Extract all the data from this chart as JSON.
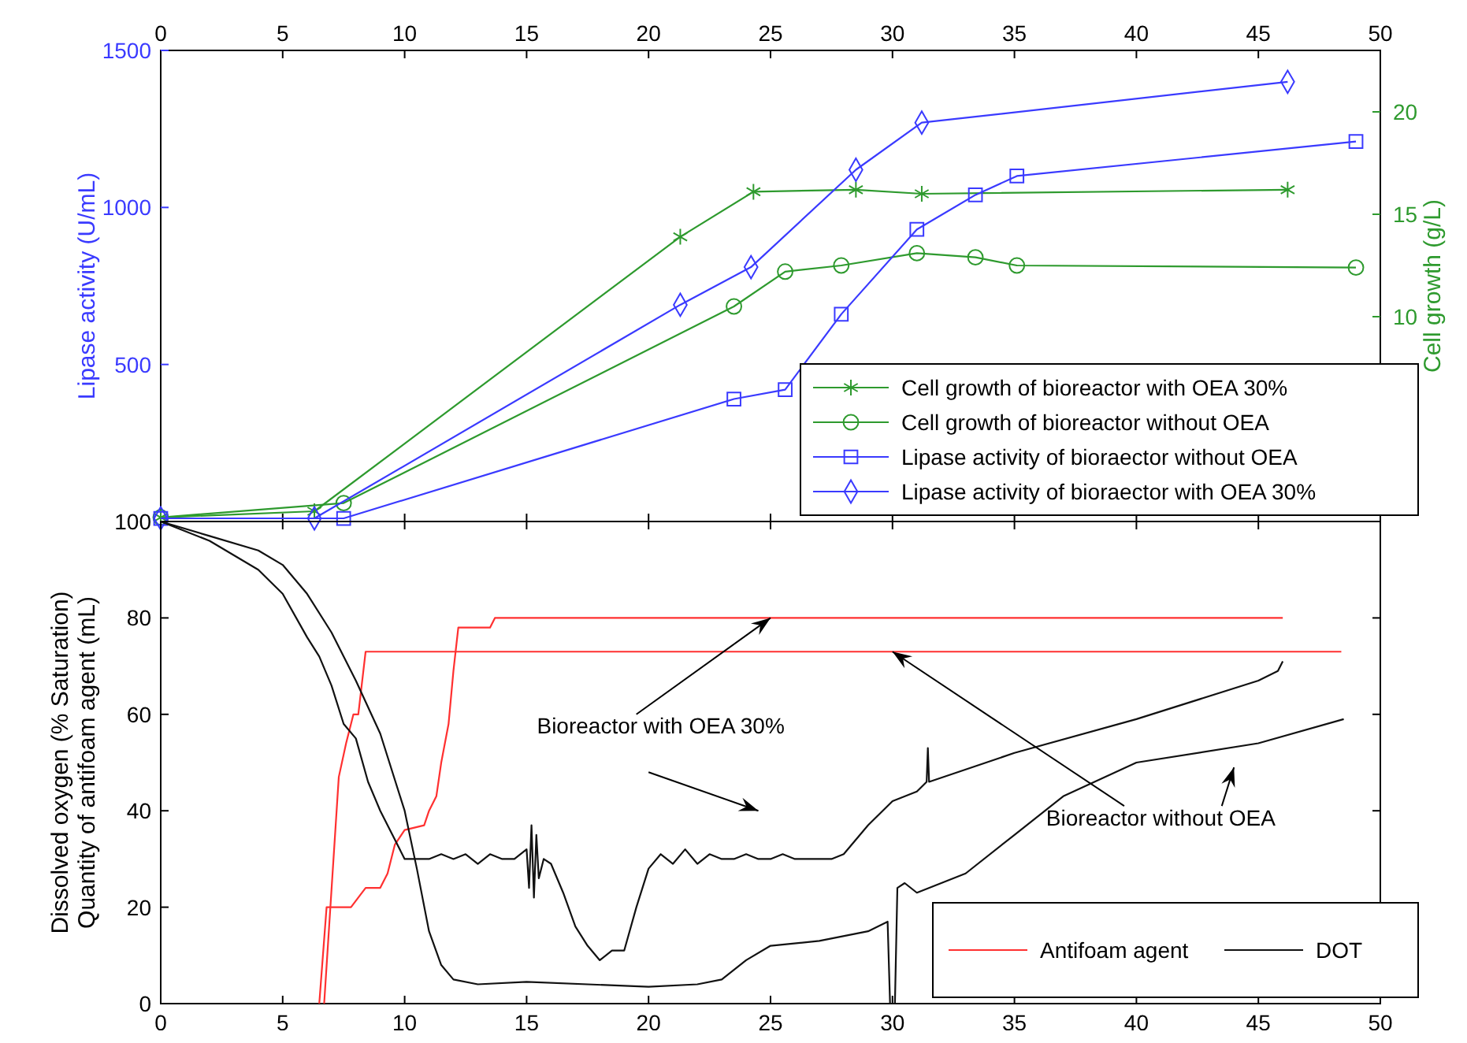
{
  "chart_data": [
    {
      "type": "line",
      "ylabel": "Lipase activity (U/mL)",
      "y2label": "Cell growth (g/L)",
      "xlim": [
        0,
        50
      ],
      "xticks": [
        0,
        5,
        10,
        15,
        20,
        25,
        30,
        35,
        40,
        45,
        50
      ],
      "ylim": [
        0,
        1500
      ],
      "yticks": [
        500,
        1000,
        1500
      ],
      "y2lim": [
        0,
        23
      ],
      "y2ticks": [
        10,
        15,
        20
      ],
      "legend": "bottom right",
      "series": [
        {
          "name": "Cell growth of bioreactor with OEA 30%",
          "color": "#2e9a2e",
          "marker": "cross",
          "axis": "y2",
          "x": [
            0,
            6.3,
            21.3,
            24.3,
            28.5,
            31.2,
            46.2
          ],
          "values": [
            0.2,
            0.5,
            13.9,
            16.1,
            16.2,
            16.0,
            16.2
          ]
        },
        {
          "name": "Cell growth of bioreactor without OEA",
          "color": "#2e9a2e",
          "marker": "circle",
          "axis": "y2",
          "x": [
            0,
            7.5,
            23.5,
            25.6,
            27.9,
            31,
            33.4,
            35.1,
            49
          ],
          "values": [
            0.2,
            0.9,
            10.5,
            12.2,
            12.5,
            13.1,
            12.9,
            12.5,
            12.4
          ]
        },
        {
          "name": "Lipase activity of bioraector without OEA",
          "color": "#3a3aff",
          "marker": "square",
          "x": [
            0,
            7.5,
            23.5,
            25.6,
            27.9,
            31,
            33.4,
            35.1,
            49
          ],
          "values": [
            10,
            10,
            390,
            420,
            660,
            930,
            1040,
            1100,
            1210
          ]
        },
        {
          "name": "Lipase activity of bioraector with OEA 30%",
          "color": "#3a3aff",
          "marker": "diamond",
          "x": [
            0,
            6.3,
            21.3,
            24.2,
            28.5,
            31.2,
            46.2
          ],
          "values": [
            10,
            10,
            690,
            810,
            1120,
            1270,
            1400
          ]
        }
      ]
    },
    {
      "type": "line",
      "ylabel": "Dissolved oxygen (% Saturation)\nQuantity of antifoam agent (mL)",
      "xlim": [
        0,
        50
      ],
      "xticks": [
        0,
        5,
        10,
        15,
        20,
        25,
        30,
        35,
        40,
        45,
        50
      ],
      "ylim": [
        0,
        100
      ],
      "yticks": [
        0,
        20,
        40,
        60,
        80,
        100
      ],
      "legend": "bottom right",
      "marker": "none",
      "annotations": [
        {
          "text": "Bioreactor with OEA 30%",
          "x": 25,
          "y": 80
        },
        {
          "text": "Bioreactor without OEA",
          "x": 30,
          "y": 73
        }
      ],
      "series": [
        {
          "name": "Antifoam agent",
          "color": "#ff3030",
          "x": [
            6.5,
            6.8,
            7.8,
            8.1,
            8.4,
            9.0,
            9.3,
            9.6,
            10,
            10.8,
            11.0,
            11.3,
            11.5,
            11.8,
            12,
            12.2,
            13.5,
            13.7,
            46
          ],
          "values": [
            0,
            20,
            20,
            22,
            24,
            24,
            27,
            33,
            36,
            37,
            40,
            43,
            50,
            58,
            69,
            78,
            78,
            80,
            80
          ]
        },
        {
          "color": "#ff3030",
          "x": [
            6.7,
            7.3,
            7.6,
            7.9,
            8.1,
            8.4,
            48.4
          ],
          "values": [
            0,
            47,
            54,
            60,
            60,
            73,
            73
          ]
        },
        {
          "name": "DOT",
          "color": "#111111",
          "x": [
            0,
            2,
            4,
            5,
            6,
            6.5,
            7,
            7.5,
            8,
            8.5,
            9,
            9.5,
            10,
            10.5,
            11,
            11.5,
            12,
            12.5,
            13,
            13.5,
            14,
            14.5,
            15,
            15.1,
            15.2,
            15.3,
            15.4,
            15.5,
            15.7,
            16,
            16.5,
            17,
            17.5,
            18,
            18.5,
            19,
            19.5,
            20,
            20.5,
            21,
            21.5,
            22,
            22.5,
            23,
            23.5,
            24,
            24.5,
            25,
            25.5,
            26,
            26.5,
            27,
            27.5,
            28,
            29,
            30,
            31,
            31.4,
            31.45,
            31.5,
            35,
            40,
            45,
            45.8,
            46
          ],
          "values": [
            100,
            96,
            90,
            85,
            76,
            72,
            66,
            58,
            55,
            46,
            40,
            35,
            30,
            30,
            30,
            31,
            30,
            31,
            29,
            31,
            30,
            30,
            32,
            24,
            37,
            22,
            35,
            26,
            30,
            29,
            23,
            16,
            12,
            9,
            11,
            11,
            20,
            28,
            31,
            29,
            32,
            29,
            31,
            30,
            30,
            31,
            30,
            30,
            31,
            30,
            30,
            30,
            30,
            31,
            37,
            42,
            44,
            46,
            53,
            46,
            52,
            59,
            67,
            69,
            71
          ]
        },
        {
          "color": "#111111",
          "x": [
            0,
            2,
            4,
            5,
            6,
            7,
            8,
            9,
            10,
            10.5,
            11,
            11.5,
            12,
            13,
            15,
            20,
            22,
            23,
            24,
            25,
            27,
            29,
            29.8,
            29.9,
            30.1,
            30.2,
            30.5,
            31,
            33,
            35,
            37,
            40,
            45,
            48.5
          ],
          "values": [
            100,
            97,
            94,
            91,
            85,
            77,
            67,
            56,
            40,
            28,
            15,
            8,
            5,
            4,
            4.5,
            3.5,
            4,
            5,
            9,
            12,
            13,
            15,
            17,
            0,
            0,
            24,
            25,
            23,
            27,
            35,
            43,
            50,
            54,
            59
          ]
        }
      ]
    }
  ]
}
